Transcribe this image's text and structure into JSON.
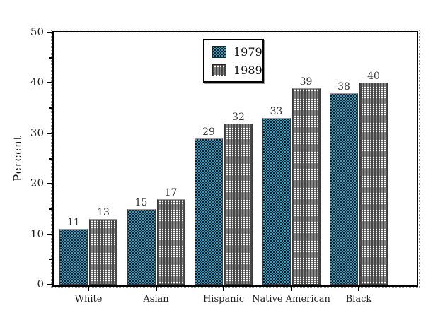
{
  "chart_data": {
    "type": "bar",
    "title": "",
    "categories": [
      "White",
      "Asian",
      "Hispanic",
      "Native American",
      "Black"
    ],
    "series": [
      {
        "name": "1979",
        "values": [
          11,
          15,
          29,
          33,
          38
        ],
        "color": "#2aa3c7",
        "pattern": "checker"
      },
      {
        "name": "1989",
        "values": [
          13,
          17,
          32,
          39,
          40
        ],
        "color": "#474747",
        "pattern": "dots"
      }
    ],
    "xlabel": "",
    "ylabel": "Percent",
    "ylim": [
      0,
      50
    ],
    "yticks": [
      0,
      10,
      20,
      30,
      40,
      50
    ],
    "minor_yticks": [
      5,
      15,
      25,
      35,
      45
    ],
    "grid": false,
    "legend_position": "top-center",
    "bar_value_labels": true,
    "colors": {
      "frame": "#000000",
      "background": "#ffffff",
      "text": "#222222"
    }
  }
}
